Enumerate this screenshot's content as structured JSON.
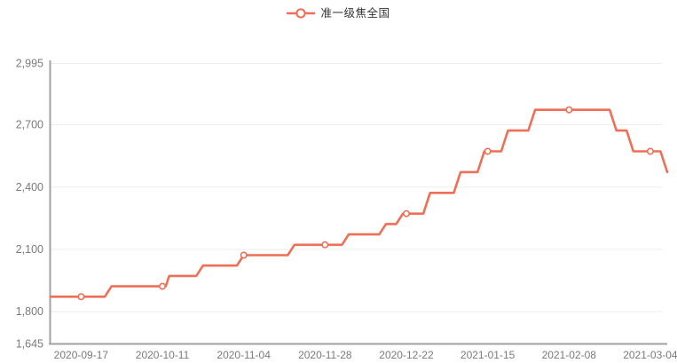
{
  "legend": {
    "label": "准一级焦全国"
  },
  "colors": {
    "series": "#EE6F55",
    "axis_line": "#A2A2A2",
    "grid_line": "#EDEDED",
    "axis_text": "#7A7A7A",
    "legend_text": "#333333",
    "background": "#FFFFFF",
    "marker_fill": "#FFFFFF"
  },
  "chart_data": {
    "type": "line",
    "title": "",
    "legend": [
      "准一级焦全国"
    ],
    "legend_position": "top-center",
    "grid": true,
    "line_style": "step-like daily price series",
    "x_axis": {
      "type": "time",
      "range": [
        "2020-09-08",
        "2021-03-09"
      ],
      "tick_labels": [
        "2020-09-17",
        "2020-10-11",
        "2020-11-04",
        "2020-11-28",
        "2020-12-22",
        "2021-01-15",
        "2021-02-08",
        "2021-03-04"
      ]
    },
    "y_axis": {
      "range": [
        1645,
        2995
      ],
      "tick_values": [
        2995,
        2700,
        2400,
        2100,
        1800,
        1645
      ],
      "tick_labels": [
        "2,995",
        "2,700",
        "2,400",
        "2,100",
        "1,800",
        "1,645"
      ]
    },
    "series": [
      {
        "name": "准一级焦全国",
        "color": "#EE6F55",
        "points": [
          [
            "2020-09-08",
            1870
          ],
          [
            "2020-09-24",
            1870
          ],
          [
            "2020-09-26",
            1920
          ],
          [
            "2020-10-12",
            1920
          ],
          [
            "2020-10-13",
            1970
          ],
          [
            "2020-10-21",
            1970
          ],
          [
            "2020-10-23",
            2020
          ],
          [
            "2020-11-02",
            2020
          ],
          [
            "2020-11-04",
            2070
          ],
          [
            "2020-11-17",
            2070
          ],
          [
            "2020-11-19",
            2120
          ],
          [
            "2020-12-03",
            2120
          ],
          [
            "2020-12-05",
            2170
          ],
          [
            "2020-12-14",
            2170
          ],
          [
            "2020-12-16",
            2220
          ],
          [
            "2020-12-19",
            2220
          ],
          [
            "2020-12-21",
            2270
          ],
          [
            "2020-12-27",
            2270
          ],
          [
            "2020-12-29",
            2370
          ],
          [
            "2021-01-05",
            2370
          ],
          [
            "2021-01-07",
            2470
          ],
          [
            "2021-01-12",
            2470
          ],
          [
            "2021-01-14",
            2570
          ],
          [
            "2021-01-19",
            2570
          ],
          [
            "2021-01-21",
            2670
          ],
          [
            "2021-01-27",
            2670
          ],
          [
            "2021-01-29",
            2770
          ],
          [
            "2021-02-20",
            2770
          ],
          [
            "2021-02-22",
            2670
          ],
          [
            "2021-02-25",
            2670
          ],
          [
            "2021-02-27",
            2570
          ],
          [
            "2021-03-07",
            2570
          ],
          [
            "2021-03-09",
            2470
          ]
        ],
        "markers": [
          [
            "2020-09-17",
            1870
          ],
          [
            "2020-10-11",
            1920
          ],
          [
            "2020-11-04",
            2070
          ],
          [
            "2020-11-28",
            2120
          ],
          [
            "2020-12-22",
            2270
          ],
          [
            "2021-01-15",
            2570
          ],
          [
            "2021-02-08",
            2770
          ],
          [
            "2021-03-04",
            2570
          ]
        ]
      }
    ]
  }
}
